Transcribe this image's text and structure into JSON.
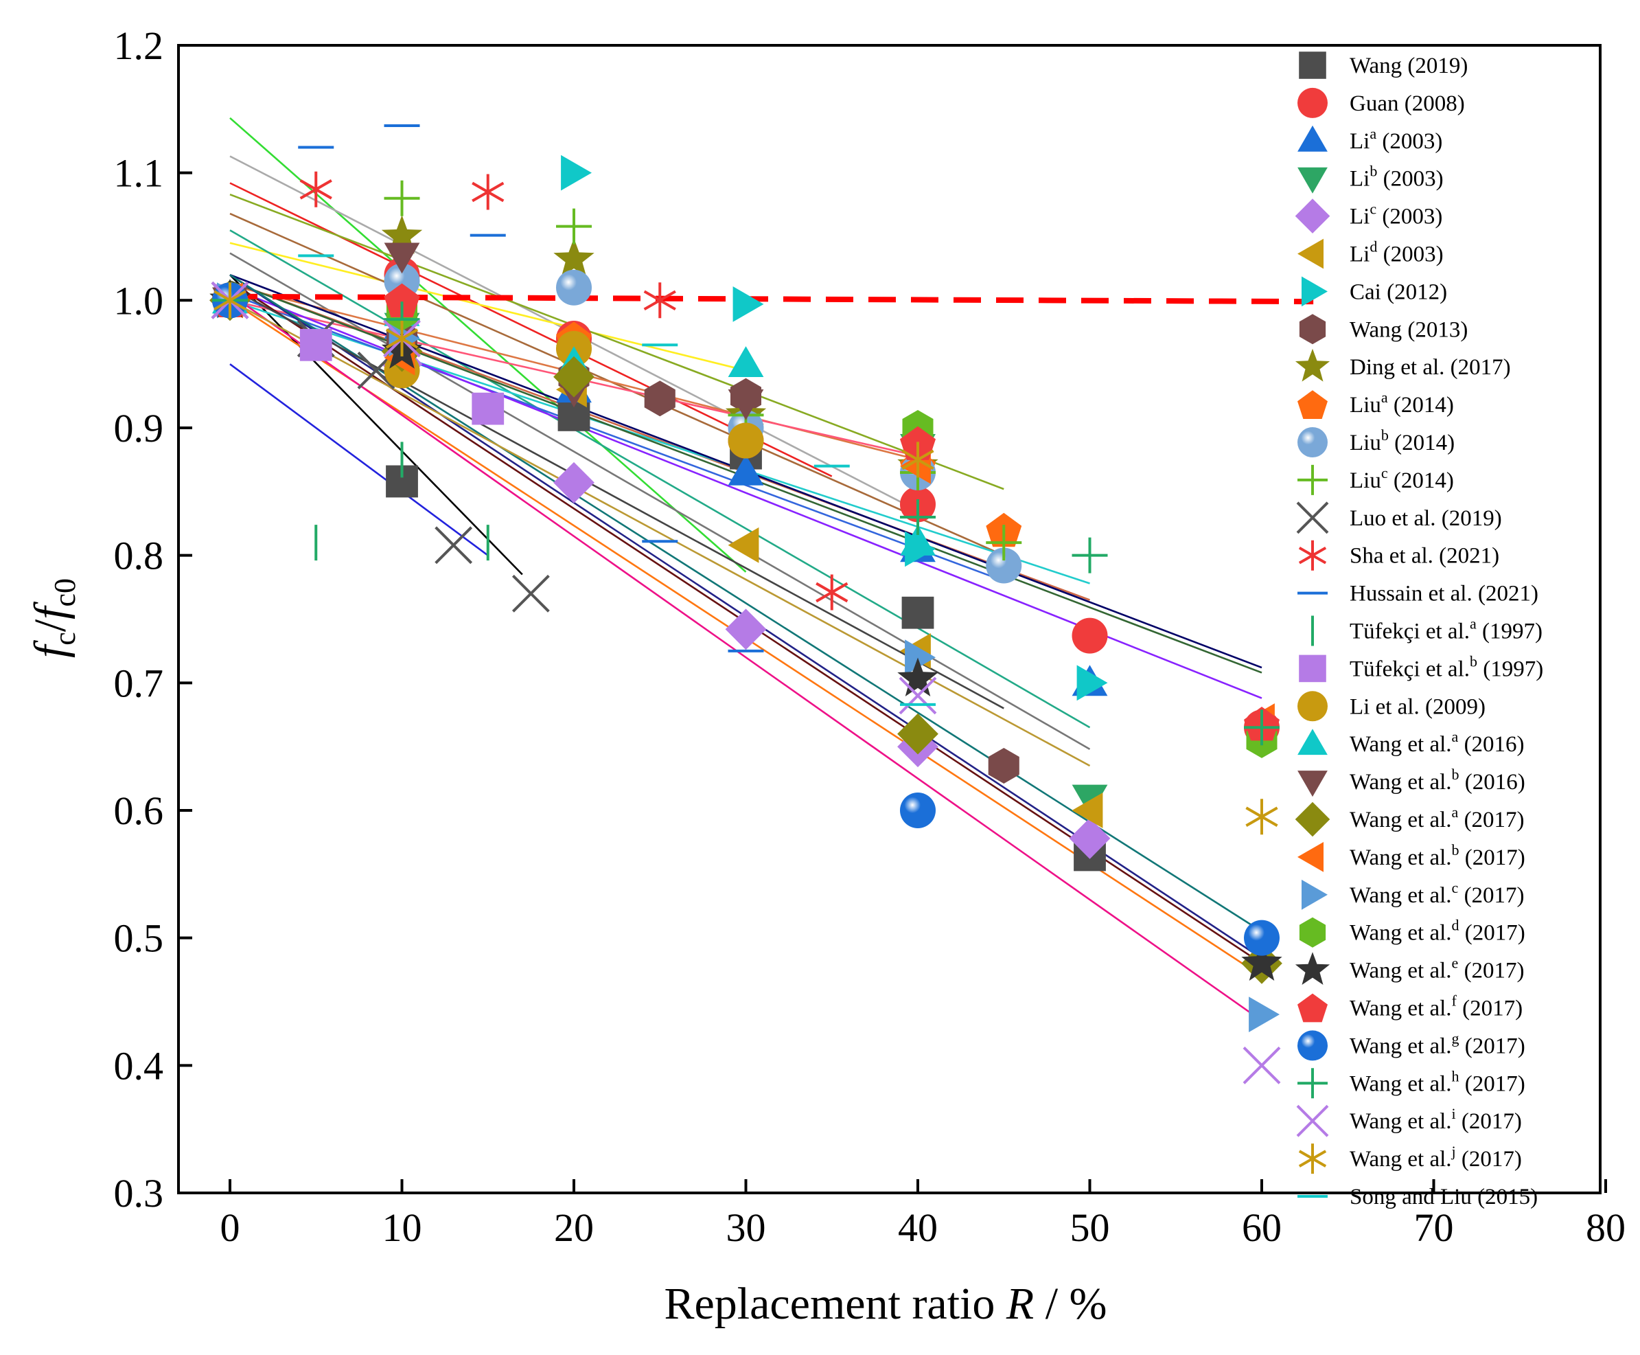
{
  "chart_data": {
    "type": "scatter",
    "title": "",
    "xlabel_main": "Replacement ratio ",
    "xlabel_var": "R",
    "xlabel_unit": " / %",
    "ylabel": "fc/fc0",
    "ylabel_f1": "f",
    "ylabel_s1": "c",
    "ylabel_sep": "/",
    "ylabel_f2": "f",
    "ylabel_s2": "c0",
    "xlim": [
      -3,
      80
    ],
    "ylim": [
      0.3,
      1.2
    ],
    "xticks": [
      "0",
      "10",
      "20",
      "30",
      "40",
      "50",
      "60",
      "70",
      "80"
    ],
    "xtick_values": [
      0,
      10,
      20,
      30,
      40,
      50,
      60,
      70,
      80
    ],
    "yticks": [
      "0.3",
      "0.4",
      "0.5",
      "0.6",
      "0.7",
      "0.8",
      "0.9",
      "1.0",
      "1.1",
      "1.2"
    ],
    "ytick_values": [
      0.3,
      0.4,
      0.5,
      0.6,
      0.7,
      0.8,
      0.9,
      1.0,
      1.1,
      1.2
    ],
    "grid": false,
    "legend_position": "right-inside",
    "reference_line": {
      "y_start": 1.003,
      "y_end": 0.999,
      "x_start": 0,
      "x_end": 63,
      "color": "#ff0000",
      "style": "dashed"
    },
    "series": [
      {
        "base": "Wang",
        "sup": "",
        "rest": " (2019)",
        "marker": "square",
        "color": "#4d4d4d",
        "points": [
          [
            0,
            1.0
          ],
          [
            10,
            0.858
          ],
          [
            20,
            0.91
          ],
          [
            30,
            0.88
          ],
          [
            40,
            0.755
          ],
          [
            50,
            0.565
          ]
        ]
      },
      {
        "base": "Guan",
        "sup": "",
        "rest": " (2008)",
        "marker": "circle",
        "color": "#f03c3c",
        "points": [
          [
            0,
            1.0
          ],
          [
            10,
            1.02
          ],
          [
            20,
            0.97
          ],
          [
            30,
            0.89
          ],
          [
            40,
            0.84
          ],
          [
            50,
            0.737
          ],
          [
            60,
            0.665
          ]
        ]
      },
      {
        "base": "Li",
        "sup": "a",
        "rest": " (2003)",
        "marker": "triangle-up",
        "color": "#1b6fd8",
        "points": [
          [
            0,
            1.0
          ],
          [
            10,
            0.98
          ],
          [
            20,
            0.93
          ],
          [
            30,
            0.865
          ],
          [
            40,
            0.805
          ],
          [
            50,
            0.7
          ]
        ]
      },
      {
        "base": "Li",
        "sup": "b",
        "rest": " (2003)",
        "marker": "triangle-down",
        "color": "#2da664",
        "points": [
          [
            0,
            1.0
          ],
          [
            10,
            0.98
          ],
          [
            20,
            0.955
          ],
          [
            30,
            0.905
          ],
          [
            40,
            0.885
          ],
          [
            50,
            0.61
          ]
        ]
      },
      {
        "base": "Li",
        "sup": "c",
        "rest": " (2003)",
        "marker": "diamond",
        "color": "#b57be6",
        "points": [
          [
            0,
            1.0
          ],
          [
            10,
            0.95
          ],
          [
            20,
            0.857
          ],
          [
            30,
            0.742
          ],
          [
            40,
            0.65
          ],
          [
            50,
            0.578
          ]
        ]
      },
      {
        "base": "Li",
        "sup": "d",
        "rest": " (2003)",
        "marker": "triangle-left",
        "color": "#c89a10",
        "points": [
          [
            0,
            1.0
          ],
          [
            10,
            0.95
          ],
          [
            20,
            0.93
          ],
          [
            30,
            0.808
          ],
          [
            40,
            0.725
          ],
          [
            50,
            0.6
          ]
        ]
      },
      {
        "base": "Cai",
        "sup": "",
        "rest": " (2012)",
        "marker": "triangle-right",
        "color": "#10c8c8",
        "points": [
          [
            0,
            1.0
          ],
          [
            20,
            1.1
          ],
          [
            30,
            0.997
          ],
          [
            40,
            0.805
          ],
          [
            50,
            0.7
          ]
        ]
      },
      {
        "base": "Wang",
        "sup": "",
        "rest": " (2013)",
        "marker": "hexagon",
        "color": "#7a4a4a",
        "points": [
          [
            0,
            1.0
          ],
          [
            10,
            0.97
          ],
          [
            20,
            0.94
          ],
          [
            25,
            0.923
          ],
          [
            30,
            0.925
          ],
          [
            45,
            0.635
          ]
        ]
      },
      {
        "base": "Ding et al.",
        "sup": "",
        "rest": " (2017)",
        "marker": "star",
        "color": "#8a8a10",
        "points": [
          [
            0,
            1.0
          ],
          [
            10,
            1.05
          ],
          [
            20,
            1.032
          ],
          [
            30,
            0.91
          ],
          [
            40,
            0.87
          ]
        ]
      },
      {
        "base": "Liu",
        "sup": "a",
        "rest": " (2014)",
        "marker": "pentagon",
        "color": "#ff6a10",
        "points": [
          [
            0,
            1.0
          ],
          [
            10,
            1.0
          ],
          [
            20,
            0.97
          ],
          [
            30,
            0.9
          ],
          [
            40,
            0.87
          ],
          [
            45,
            0.82
          ]
        ]
      },
      {
        "base": "Liu",
        "sup": "b",
        "rest": " (2014)",
        "marker": "sphere",
        "color": "#7aa8d8",
        "points": [
          [
            0,
            1.0
          ],
          [
            10,
            1.015
          ],
          [
            20,
            1.01
          ],
          [
            30,
            0.9
          ],
          [
            40,
            0.865
          ],
          [
            45,
            0.792
          ]
        ]
      },
      {
        "base": "Liu",
        "sup": "c",
        "rest": " (2014)",
        "marker": "plus",
        "color": "#66bb22",
        "points": [
          [
            0,
            1.0
          ],
          [
            10,
            1.08
          ],
          [
            20,
            1.058
          ],
          [
            30,
            0.91
          ],
          [
            40,
            0.865
          ],
          [
            45,
            0.81
          ]
        ]
      },
      {
        "base": "Luo et al.",
        "sup": "",
        "rest": " (2019)",
        "marker": "x",
        "color": "#555555",
        "points": [
          [
            0,
            1.0
          ],
          [
            5,
            0.97
          ],
          [
            8.5,
            0.945
          ],
          [
            13,
            0.808
          ],
          [
            17.5,
            0.77
          ]
        ]
      },
      {
        "base": "Sha et al.",
        "sup": "",
        "rest": " (2021)",
        "marker": "asterisk",
        "color": "#ee3333",
        "points": [
          [
            0,
            1.0
          ],
          [
            5,
            1.087
          ],
          [
            15,
            1.085
          ],
          [
            25,
            1.0
          ],
          [
            35,
            0.771
          ]
        ]
      },
      {
        "base": "Hussain et al.",
        "sup": "",
        "rest": " (2021)",
        "marker": "hline",
        "color": "#1b6fd8",
        "points": [
          [
            5,
            1.12
          ],
          [
            10,
            1.137
          ],
          [
            15,
            1.051
          ],
          [
            25,
            0.811
          ],
          [
            30,
            0.725
          ]
        ]
      },
      {
        "base": "Tüfekçi et al.",
        "sup": "a",
        "rest": " (1997)",
        "marker": "vline",
        "color": "#22aa66",
        "points": [
          [
            5,
            0.81
          ],
          [
            10,
            0.875
          ],
          [
            15,
            0.81
          ]
        ]
      },
      {
        "base": "Tüfekçi et al.",
        "sup": "b",
        "rest": " (1997)",
        "marker": "square",
        "color": "#b57be6",
        "points": [
          [
            0,
            1.0
          ],
          [
            5,
            0.965
          ],
          [
            15,
            0.915
          ]
        ]
      },
      {
        "base": "Li et al.",
        "sup": "",
        "rest": " (2009)",
        "marker": "circle",
        "color": "#c89a10",
        "points": [
          [
            0,
            1.0
          ],
          [
            10,
            0.945
          ],
          [
            20,
            0.962
          ],
          [
            30,
            0.89
          ]
        ]
      },
      {
        "base": "Wang et al.",
        "sup": "a",
        "rest": " (2016)",
        "marker": "triangle-up",
        "color": "#10c8c8",
        "points": [
          [
            0,
            1.0
          ],
          [
            10,
            0.99
          ],
          [
            20,
            0.95
          ],
          [
            30,
            0.95
          ],
          [
            40,
            0.81
          ]
        ]
      },
      {
        "base": "Wang et al.",
        "sup": "b",
        "rest": " (2016)",
        "marker": "triangle-down",
        "color": "#7a4a4a",
        "points": [
          [
            0,
            1.0
          ],
          [
            10,
            1.035
          ],
          [
            20,
            0.93
          ],
          [
            30,
            0.92
          ]
        ]
      },
      {
        "base": "Wang et al.",
        "sup": "a",
        "rest": " (2017)",
        "marker": "diamond",
        "color": "#8a8a10",
        "points": [
          [
            0,
            1.0
          ],
          [
            10,
            0.96
          ],
          [
            20,
            0.94
          ],
          [
            40,
            0.66
          ],
          [
            60,
            0.48
          ]
        ]
      },
      {
        "base": "Wang et al.",
        "sup": "b",
        "rest": " (2017)",
        "marker": "triangle-left",
        "color": "#ff6a10",
        "points": [
          [
            0,
            1.0
          ],
          [
            10,
            0.955
          ],
          [
            40,
            0.87
          ],
          [
            60,
            0.67
          ]
        ]
      },
      {
        "base": "Wang et al.",
        "sup": "c",
        "rest": " (2017)",
        "marker": "triangle-right",
        "color": "#5a9bd8",
        "points": [
          [
            0,
            1.0
          ],
          [
            10,
            0.97
          ],
          [
            40,
            0.72
          ],
          [
            60,
            0.44
          ]
        ]
      },
      {
        "base": "Wang et al.",
        "sup": "d",
        "rest": " (2017)",
        "marker": "hexagon",
        "color": "#66bb22",
        "points": [
          [
            0,
            1.0
          ],
          [
            10,
            0.99
          ],
          [
            40,
            0.9
          ],
          [
            60,
            0.655
          ]
        ]
      },
      {
        "base": "Wang et al.",
        "sup": "e",
        "rest": " (2017)",
        "marker": "star",
        "color": "#333333",
        "points": [
          [
            0,
            1.0
          ],
          [
            10,
            0.96
          ],
          [
            40,
            0.703
          ],
          [
            60,
            0.48
          ]
        ]
      },
      {
        "base": "Wang et al.",
        "sup": "f",
        "rest": " (2017)",
        "marker": "pentagon",
        "color": "#f03c3c",
        "points": [
          [
            0,
            1.0
          ],
          [
            10,
            1.0
          ],
          [
            40,
            0.888
          ],
          [
            60,
            0.668
          ]
        ]
      },
      {
        "base": "Wang et al.",
        "sup": "g",
        "rest": " (2017)",
        "marker": "sphere",
        "color": "#1b6fd8",
        "points": [
          [
            0,
            1.0
          ],
          [
            40,
            0.6
          ],
          [
            60,
            0.5
          ]
        ]
      },
      {
        "base": "Wang et al.",
        "sup": "h",
        "rest": " (2017)",
        "marker": "plus",
        "color": "#22aa66",
        "points": [
          [
            0,
            1.0
          ],
          [
            10,
            0.985
          ],
          [
            40,
            0.83
          ],
          [
            50,
            0.8
          ],
          [
            60,
            0.665
          ]
        ]
      },
      {
        "base": "Wang et al.",
        "sup": "i",
        "rest": " (2017)",
        "marker": "x",
        "color": "#b57be6",
        "points": [
          [
            0,
            1.0
          ],
          [
            10,
            0.97
          ],
          [
            40,
            0.69
          ],
          [
            60,
            0.4
          ]
        ]
      },
      {
        "base": "Wang et al.",
        "sup": "j",
        "rest": " (2017)",
        "marker": "asterisk",
        "color": "#c89a10",
        "points": [
          [
            0,
            1.0
          ],
          [
            10,
            0.97
          ],
          [
            40,
            0.875
          ],
          [
            60,
            0.595
          ]
        ]
      },
      {
        "base": "Song and Liu",
        "sup": "",
        "rest": " (2015)",
        "marker": "hline",
        "color": "#10c8c8",
        "points": [
          [
            5,
            1.035
          ],
          [
            25,
            0.965
          ],
          [
            35,
            0.87
          ],
          [
            40,
            0.683
          ]
        ]
      }
    ],
    "fit_lines": [
      {
        "color": "#000000",
        "x0": 0,
        "y0": 1.02,
        "x1": 17,
        "y1": 0.785
      },
      {
        "color": "#2222dd",
        "x0": 0,
        "y0": 0.95,
        "x1": 15,
        "y1": 0.8
      },
      {
        "color": "#33dd33",
        "x0": 0,
        "y0": 1.143,
        "x1": 30,
        "y1": 0.787
      },
      {
        "color": "#aaaaaa",
        "x0": 0,
        "y0": 1.113,
        "x1": 40,
        "y1": 0.835
      },
      {
        "color": "#ee2222",
        "x0": 0,
        "y0": 1.092,
        "x1": 35,
        "y1": 0.862
      },
      {
        "color": "#ffee22",
        "x0": 0,
        "y0": 1.045,
        "x1": 30,
        "y1": 0.945
      },
      {
        "color": "#88aa22",
        "x0": 0,
        "y0": 1.083,
        "x1": 45,
        "y1": 0.852
      },
      {
        "color": "#a86a3a",
        "x0": 0,
        "y0": 1.068,
        "x1": 45,
        "y1": 0.8
      },
      {
        "color": "#22aa88",
        "x0": 0,
        "y0": 1.055,
        "x1": 50,
        "y1": 0.665
      },
      {
        "color": "#777777",
        "x0": 0,
        "y0": 1.037,
        "x1": 50,
        "y1": 0.648
      },
      {
        "color": "#cc6644",
        "x0": 0,
        "y0": 1.015,
        "x1": 50,
        "y1": 0.765
      },
      {
        "color": "#22cccc",
        "x0": 0,
        "y0": 1.0,
        "x1": 50,
        "y1": 0.778
      },
      {
        "color": "#3366dd",
        "x0": 0,
        "y0": 1.005,
        "x1": 45,
        "y1": 0.78
      },
      {
        "color": "#dd7744",
        "x0": 0,
        "y0": 1.012,
        "x1": 40,
        "y1": 0.875
      },
      {
        "color": "#ff5577",
        "x0": 0,
        "y0": 1.0,
        "x1": 40,
        "y1": 0.878
      },
      {
        "color": "#000066",
        "x0": 0,
        "y0": 1.02,
        "x1": 60,
        "y1": 0.712
      },
      {
        "color": "#336633",
        "x0": 0,
        "y0": 1.015,
        "x1": 60,
        "y1": 0.708
      },
      {
        "color": "#8822ff",
        "x0": 0,
        "y0": 1.01,
        "x1": 60,
        "y1": 0.688
      },
      {
        "color": "#222288",
        "x0": 0,
        "y0": 1.02,
        "x1": 60,
        "y1": 0.484
      },
      {
        "color": "#661111",
        "x0": 0,
        "y0": 1.015,
        "x1": 60,
        "y1": 0.48
      },
      {
        "color": "#117777",
        "x0": 0,
        "y0": 1.02,
        "x1": 60,
        "y1": 0.505
      },
      {
        "color": "#ff7711",
        "x0": 0,
        "y0": 1.0,
        "x1": 60,
        "y1": 0.47
      },
      {
        "color": "#ee1188",
        "x0": 0,
        "y0": 1.005,
        "x1": 60,
        "y1": 0.435
      },
      {
        "color": "#bb9933",
        "x0": 0,
        "y0": 1.0,
        "x1": 50,
        "y1": 0.635
      },
      {
        "color": "#444444",
        "x0": 0,
        "y0": 1.01,
        "x1": 45,
        "y1": 0.68
      }
    ]
  }
}
